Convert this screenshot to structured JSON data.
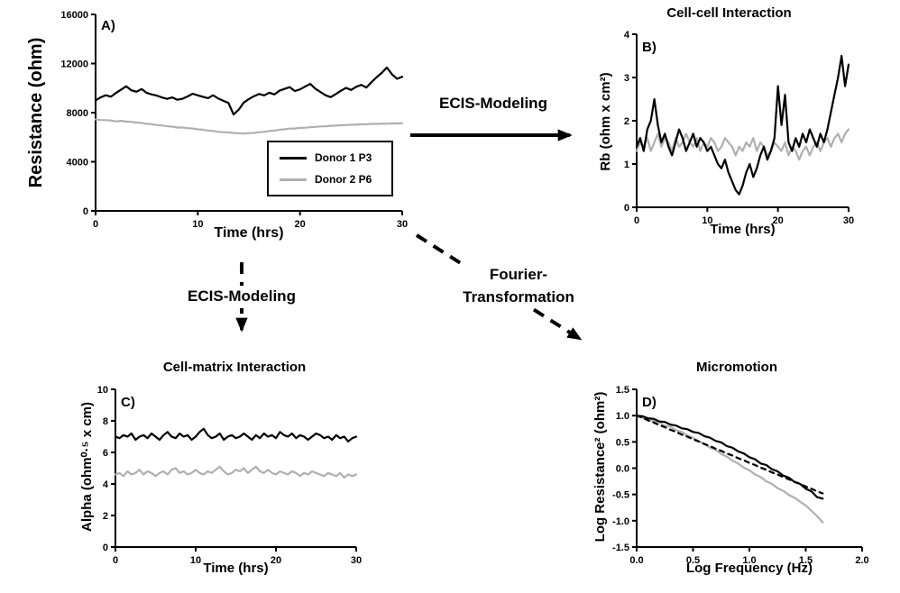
{
  "figure": {
    "arrows": {
      "ecis_modeling_right": "ECIS-Modeling",
      "ecis_modeling_down": "ECIS-Modeling",
      "fourier_line1": "Fourier-",
      "fourier_line2": "Transformation"
    },
    "colors": {
      "black": "#000000",
      "gray": "#b0b0b0"
    }
  },
  "chart_data": [
    {
      "id": "A",
      "type": "line",
      "panel_label": "A)",
      "title": "",
      "xlabel": "Time (hrs)",
      "ylabel": "Resistance (ohm)",
      "xlim": [
        0,
        30
      ],
      "xticks": [
        0,
        10,
        20,
        30
      ],
      "xtick_labels": [
        "0",
        "10",
        "20",
        "30"
      ],
      "ylim": [
        0,
        16000
      ],
      "yticks": [
        0,
        4000,
        8000,
        12000,
        16000
      ],
      "ytick_labels": [
        "0",
        "4000",
        "8000",
        "12000",
        "16000"
      ],
      "x_start": 0,
      "x_step": 0.5,
      "legend": {
        "entries": [
          {
            "label": "Donor 1 P3",
            "color": "#000000"
          },
          {
            "label": "Donor 2 P6",
            "color": "#b0b0b0"
          }
        ]
      },
      "series": [
        {
          "name": "Donor 2 P6",
          "color": "#b0b0b0",
          "dash": "none",
          "values": [
            7450,
            7400,
            7390,
            7360,
            7290,
            7330,
            7270,
            7250,
            7190,
            7160,
            7090,
            7060,
            6990,
            6960,
            6890,
            6860,
            6790,
            6790,
            6740,
            6710,
            6640,
            6610,
            6540,
            6510,
            6440,
            6410,
            6390,
            6340,
            6330,
            6290,
            6340,
            6350,
            6410,
            6440,
            6510,
            6540,
            6610,
            6640,
            6710,
            6710,
            6760,
            6770,
            6810,
            6840,
            6880,
            6890,
            6930,
            6940,
            6980,
            6990,
            7020,
            7020,
            7060,
            7050,
            7090,
            7080,
            7110,
            7100,
            7130,
            7120,
            7150
          ]
        },
        {
          "name": "Donor 1 P3",
          "color": "#000000",
          "dash": "none",
          "values": [
            9000,
            9250,
            9420,
            9300,
            9610,
            9880,
            10150,
            9820,
            9700,
            9920,
            9610,
            9480,
            9390,
            9230,
            9120,
            9240,
            9050,
            9130,
            9320,
            9540,
            9410,
            9290,
            9180,
            9420,
            9150,
            8960,
            8790,
            7850,
            8240,
            8820,
            9110,
            9340,
            9520,
            9410,
            9630,
            9480,
            9790,
            9940,
            10080,
            9760,
            9890,
            10120,
            10340,
            9950,
            9680,
            9420,
            9260,
            9510,
            9780,
            10020,
            9850,
            10110,
            10260,
            10050,
            10480,
            10890,
            11240,
            11680,
            11120,
            10760,
            10920
          ]
        }
      ]
    },
    {
      "id": "B",
      "type": "line",
      "panel_label": "B)",
      "title": "Cell-cell Interaction",
      "xlabel": "Time (hrs)",
      "ylabel": "Rb (ohm x cm²)",
      "xlim": [
        0,
        30
      ],
      "xticks": [
        0,
        10,
        20,
        30
      ],
      "xtick_labels": [
        "0",
        "10",
        "20",
        "30"
      ],
      "ylim": [
        0,
        4
      ],
      "yticks": [
        0,
        1,
        2,
        3,
        4
      ],
      "ytick_labels": [
        "0",
        "1",
        "2",
        "3",
        "4"
      ],
      "x_start": 0,
      "x_step": 0.5,
      "series": [
        {
          "name": "Donor 2 P6",
          "color": "#b0b0b0",
          "dash": "none",
          "values": [
            1.3,
            1.5,
            1.4,
            1.6,
            1.3,
            1.5,
            1.7,
            1.4,
            1.6,
            1.5,
            1.3,
            1.6,
            1.4,
            1.5,
            1.7,
            1.5,
            1.4,
            1.6,
            1.3,
            1.5,
            1.4,
            1.6,
            1.5,
            1.3,
            1.4,
            1.6,
            1.5,
            1.4,
            1.2,
            1.4,
            1.3,
            1.5,
            1.4,
            1.6,
            1.3,
            1.5,
            1.4,
            1.2,
            1.3,
            1.5,
            1.4,
            1.3,
            1.5,
            1.2,
            1.4,
            1.3,
            1.1,
            1.3,
            1.4,
            1.2,
            1.4,
            1.5,
            1.3,
            1.5,
            1.6,
            1.4,
            1.6,
            1.7,
            1.5,
            1.7,
            1.8
          ]
        },
        {
          "name": "Donor 1 P3",
          "color": "#000000",
          "dash": "none",
          "values": [
            1.4,
            1.6,
            1.3,
            1.8,
            2.0,
            2.5,
            1.9,
            1.5,
            1.7,
            1.4,
            1.2,
            1.5,
            1.8,
            1.6,
            1.3,
            1.5,
            1.7,
            1.4,
            1.6,
            1.5,
            1.3,
            1.4,
            1.2,
            1.0,
            0.9,
            1.1,
            0.8,
            0.6,
            0.4,
            0.3,
            0.5,
            0.8,
            1.0,
            0.7,
            0.9,
            1.2,
            1.4,
            1.1,
            1.3,
            1.6,
            2.8,
            1.9,
            2.6,
            1.5,
            1.3,
            1.6,
            1.4,
            1.7,
            1.5,
            1.8,
            1.6,
            1.4,
            1.7,
            1.5,
            1.8,
            2.2,
            2.6,
            3.0,
            3.5,
            2.8,
            3.3
          ]
        }
      ]
    },
    {
      "id": "C",
      "type": "line",
      "panel_label": "C)",
      "title": "Cell-matrix Interaction",
      "xlabel": "Time (hrs)",
      "ylabel": "Alpha (ohm⁰·⁵ x cm)",
      "xlim": [
        0,
        30
      ],
      "xticks": [
        0,
        10,
        20,
        30
      ],
      "xtick_labels": [
        "0",
        "10",
        "20",
        "30"
      ],
      "ylim": [
        0,
        10
      ],
      "yticks": [
        0,
        2,
        4,
        6,
        8,
        10
      ],
      "ytick_labels": [
        "0",
        "2",
        "4",
        "6",
        "8",
        "10"
      ],
      "x_start": 0,
      "x_step": 0.5,
      "series": [
        {
          "name": "Donor 2 P6",
          "color": "#b0b0b0",
          "dash": "none",
          "values": [
            4.6,
            4.7,
            4.5,
            4.8,
            4.6,
            4.7,
            4.9,
            4.6,
            4.8,
            4.7,
            4.5,
            4.7,
            4.8,
            4.6,
            4.9,
            5.0,
            4.7,
            4.8,
            4.6,
            4.7,
            4.9,
            4.7,
            4.6,
            4.8,
            4.7,
            4.9,
            5.1,
            4.8,
            4.6,
            4.7,
            4.9,
            4.8,
            5.0,
            4.7,
            4.9,
            5.1,
            4.8,
            4.7,
            4.9,
            4.7,
            4.6,
            4.8,
            4.7,
            4.6,
            4.8,
            4.7,
            4.5,
            4.7,
            4.6,
            4.8,
            4.7,
            4.6,
            4.5,
            4.7,
            4.6,
            4.5,
            4.7,
            4.4,
            4.6,
            4.5,
            4.6
          ]
        },
        {
          "name": "Donor 1 P3",
          "color": "#000000",
          "dash": "none",
          "values": [
            7.0,
            6.9,
            7.1,
            7.0,
            7.2,
            6.8,
            7.0,
            7.1,
            6.9,
            7.2,
            7.0,
            6.8,
            7.1,
            7.3,
            7.0,
            6.9,
            7.2,
            7.0,
            7.1,
            6.8,
            7.0,
            7.3,
            7.5,
            7.1,
            6.9,
            7.0,
            7.2,
            6.8,
            7.0,
            7.1,
            6.9,
            7.0,
            7.2,
            7.0,
            6.8,
            7.1,
            6.9,
            7.2,
            7.0,
            7.1,
            6.9,
            7.3,
            7.1,
            7.0,
            7.2,
            6.9,
            7.1,
            7.0,
            6.8,
            7.0,
            7.2,
            7.1,
            6.9,
            7.0,
            6.8,
            7.1,
            6.9,
            7.0,
            6.7,
            6.9,
            7.0
          ]
        }
      ]
    },
    {
      "id": "D",
      "type": "line",
      "panel_label": "D)",
      "title": "Micromotion",
      "xlabel": "Log Frequency (Hz)",
      "ylabel": "Log Resistance² (ohm²)",
      "xlim": [
        0,
        2
      ],
      "xticks": [
        0,
        0.5,
        1,
        1.5,
        2
      ],
      "xtick_labels": [
        "0.0",
        "0.5",
        "1.0",
        "1.5",
        "2.0"
      ],
      "ylim": [
        -1.5,
        1.5
      ],
      "yticks": [
        -1.5,
        -1,
        -0.5,
        0,
        0.5,
        1,
        1.5
      ],
      "ytick_labels": [
        "-1.5",
        "-1.0",
        "-0.5",
        "0.0",
        "0.5",
        "1.0",
        "1.5"
      ],
      "x_start": 0,
      "x_step": 0.05,
      "series": [
        {
          "name": "Donor 2 P6",
          "color": "#b0b0b0",
          "dash": "none",
          "values": [
            1.0,
            0.96,
            0.94,
            0.89,
            0.87,
            0.81,
            0.79,
            0.72,
            0.69,
            0.62,
            0.58,
            0.51,
            0.47,
            0.39,
            0.35,
            0.27,
            0.22,
            0.14,
            0.09,
            0.01,
            -0.04,
            -0.12,
            -0.17,
            -0.25,
            -0.3,
            -0.38,
            -0.43,
            -0.51,
            -0.56,
            -0.64,
            -0.71,
            -0.81,
            -0.91,
            -1.03
          ]
        },
        {
          "name": "Donor 1 P3",
          "color": "#000000",
          "dash": "none",
          "values": [
            1.0,
            0.99,
            0.95,
            0.94,
            0.89,
            0.88,
            0.83,
            0.81,
            0.76,
            0.74,
            0.69,
            0.67,
            0.61,
            0.58,
            0.52,
            0.49,
            0.42,
            0.39,
            0.32,
            0.28,
            0.21,
            0.17,
            0.09,
            0.06,
            -0.02,
            -0.06,
            -0.14,
            -0.18,
            -0.26,
            -0.3,
            -0.39,
            -0.44,
            -0.55,
            -0.58
          ]
        },
        {
          "name": "black dashed fit",
          "color": "#000000",
          "dash": "dashed",
          "values": [
            1.0,
            0.96,
            0.91,
            0.87,
            0.82,
            0.78,
            0.73,
            0.69,
            0.64,
            0.6,
            0.55,
            0.51,
            0.46,
            0.42,
            0.37,
            0.33,
            0.28,
            0.24,
            0.19,
            0.15,
            0.1,
            0.06,
            0.01,
            -0.03,
            -0.08,
            -0.12,
            -0.17,
            -0.21,
            -0.26,
            -0.3,
            -0.35,
            -0.39,
            -0.44,
            -0.48
          ]
        }
      ]
    }
  ]
}
